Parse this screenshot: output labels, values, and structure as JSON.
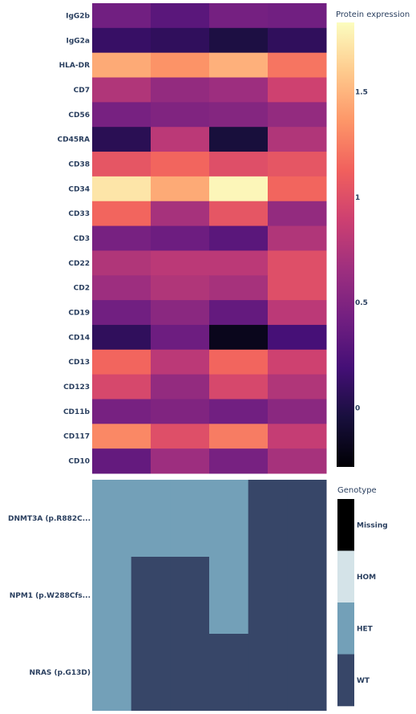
{
  "chart_data": [
    {
      "type": "heatmap",
      "rows": [
        "IgG2b",
        "IgG2a",
        "HLA-DR",
        "CD7",
        "CD56",
        "CD45RA",
        "CD38",
        "CD34",
        "CD33",
        "CD3",
        "CD22",
        "CD2",
        "CD19",
        "CD14",
        "CD13",
        "CD123",
        "CD11b",
        "CD117",
        "CD10"
      ],
      "values": [
        [
          0.42,
          0.3,
          0.44,
          0.42
        ],
        [
          0.12,
          0.08,
          -0.02,
          0.08
        ],
        [
          1.45,
          1.35,
          1.48,
          1.22
        ],
        [
          0.75,
          0.6,
          0.65,
          0.9
        ],
        [
          0.45,
          0.5,
          0.52,
          0.6
        ],
        [
          0.05,
          0.8,
          -0.05,
          0.75
        ],
        [
          1.05,
          1.15,
          1.0,
          1.05
        ],
        [
          1.72,
          1.45,
          1.8,
          1.15
        ],
        [
          1.15,
          0.7,
          1.05,
          0.6
        ],
        [
          0.45,
          0.4,
          0.3,
          0.75
        ],
        [
          0.75,
          0.8,
          0.8,
          1.0
        ],
        [
          0.65,
          0.75,
          0.7,
          1.0
        ],
        [
          0.42,
          0.55,
          0.35,
          0.8
        ],
        [
          0.08,
          0.4,
          -0.18,
          0.2
        ],
        [
          1.15,
          0.8,
          1.15,
          0.9
        ],
        [
          0.95,
          0.6,
          0.95,
          0.75
        ],
        [
          0.45,
          0.5,
          0.42,
          0.55
        ],
        [
          1.3,
          1.0,
          1.25,
          0.85
        ],
        [
          0.35,
          0.65,
          0.45,
          0.7
        ]
      ],
      "colorbar": {
        "title": "Protein expression",
        "ticks": [
          "0",
          "0.5",
          "1",
          "1.5"
        ],
        "tick_values": [
          0,
          0.5,
          1,
          1.5
        ],
        "zmin": -0.28,
        "zmax": 1.83,
        "colorscale": [
          "#000004",
          "#180f3d",
          "#440f76",
          "#721f81",
          "#9e2f7f",
          "#cd4071",
          "#f1605d",
          "#fd9668",
          "#feca8d",
          "#fcfdbf"
        ]
      }
    },
    {
      "type": "heatmap",
      "rows": [
        "DNMT3A (p.R882C...",
        "NPM1 (p.W288Cfs...",
        "NRAS (p.G13D)"
      ],
      "grid": [
        [
          "HET",
          "HET",
          "HET",
          "HET",
          "WT",
          "WT"
        ],
        [
          "HET",
          "WT",
          "WT",
          "HET",
          "WT",
          "WT"
        ],
        [
          "HET",
          "WT",
          "WT",
          "WT",
          "WT",
          "WT"
        ]
      ],
      "legend": {
        "title": "Genotype",
        "categories": [
          "Missing",
          "HOM",
          "HET",
          "WT"
        ],
        "colors": {
          "Missing": "#000000",
          "HOM": "#d4e3e8",
          "HET": "#73a0b8",
          "WT": "#374668"
        }
      }
    }
  ]
}
